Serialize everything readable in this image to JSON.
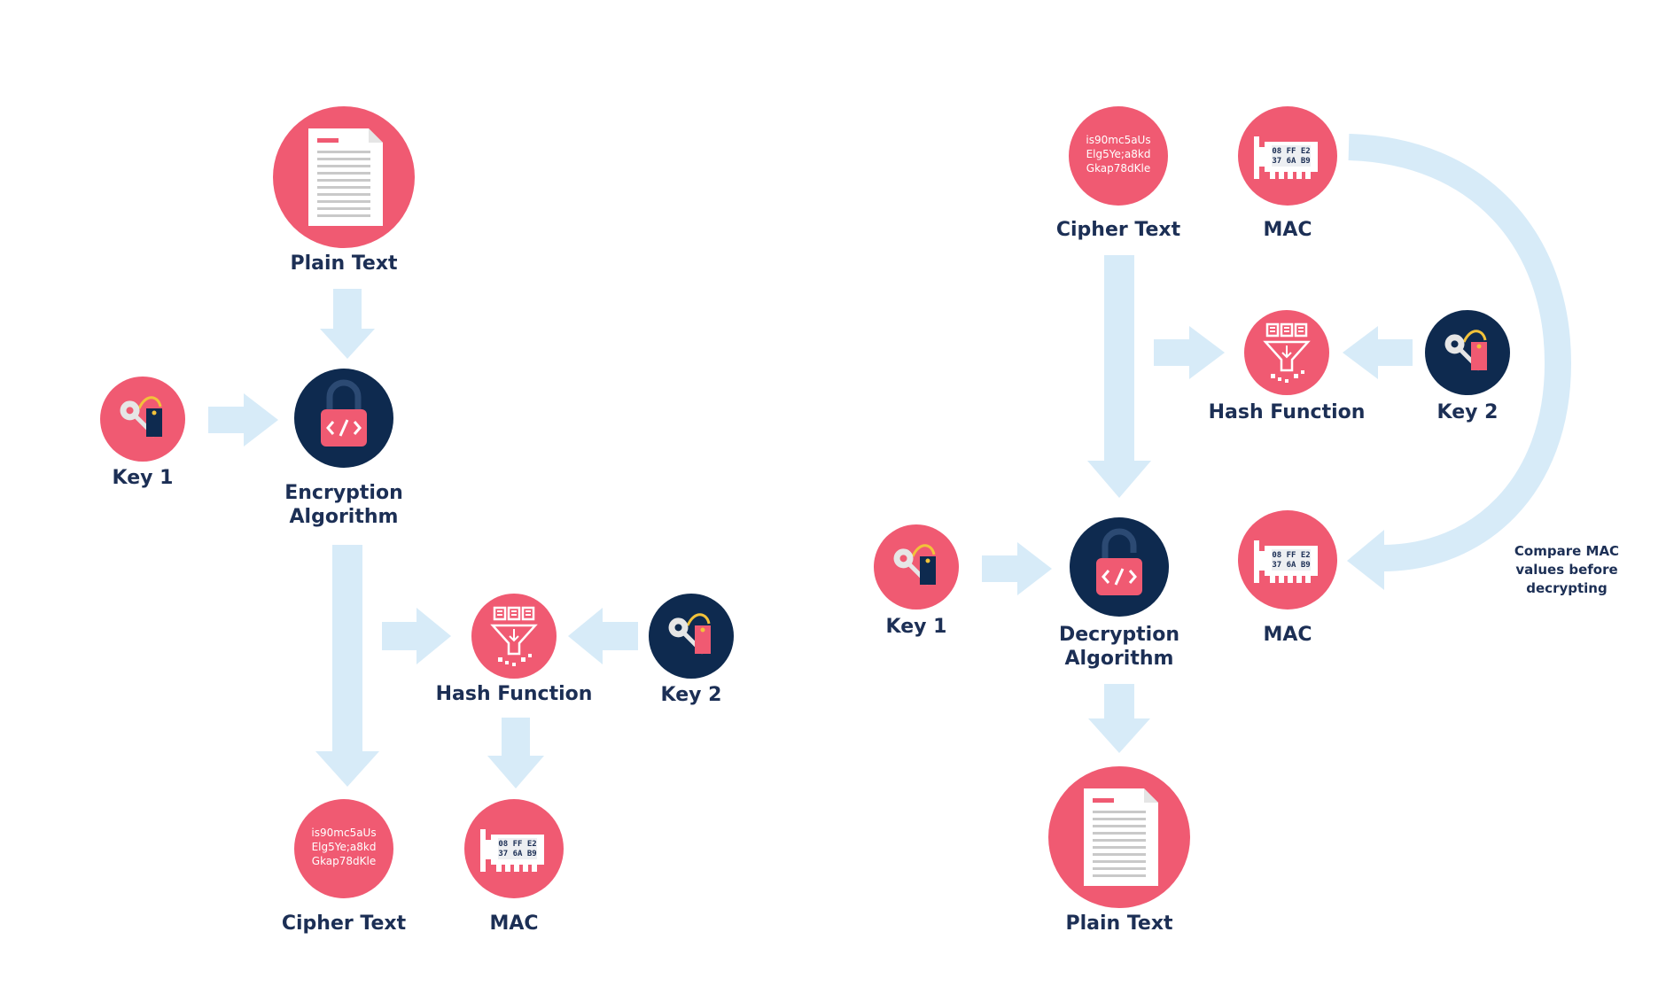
{
  "left_flow": {
    "plain_text": "Plain Text",
    "key1": "Key 1",
    "encryption_line1": "Encryption",
    "encryption_line2": "Algorithm",
    "hash_function": "Hash Function",
    "key2": "Key 2",
    "cipher_text": "Cipher Text",
    "mac": "MAC",
    "cipher_icon_lines": [
      "is90mc5aUs",
      "Elg5Ye;a8kd",
      "Gkap78dKle"
    ],
    "mac_icon_lines": [
      "08 FF E2",
      "37 6A B9"
    ]
  },
  "right_flow": {
    "cipher_text": "Cipher Text",
    "mac_top": "MAC",
    "hash_function": "Hash Function",
    "key2": "Key 2",
    "key1": "Key 1",
    "decryption_line1": "Decryption",
    "decryption_line2": "Algorithm",
    "mac_bottom": "MAC",
    "plain_text": "Plain Text",
    "compare_note": [
      "Compare MAC",
      "values before",
      "decrypting"
    ],
    "cipher_icon_lines": [
      "is90mc5aUs",
      "Elg5Ye;a8kd",
      "Gkap78dKle"
    ],
    "mac_icon_lines": [
      "08 FF E2",
      "37 6A B9"
    ]
  },
  "colors": {
    "pink": "#f05a72",
    "navy": "#0e2a4f",
    "arrow": "#d7ebf8",
    "label": "#1c2f55"
  }
}
